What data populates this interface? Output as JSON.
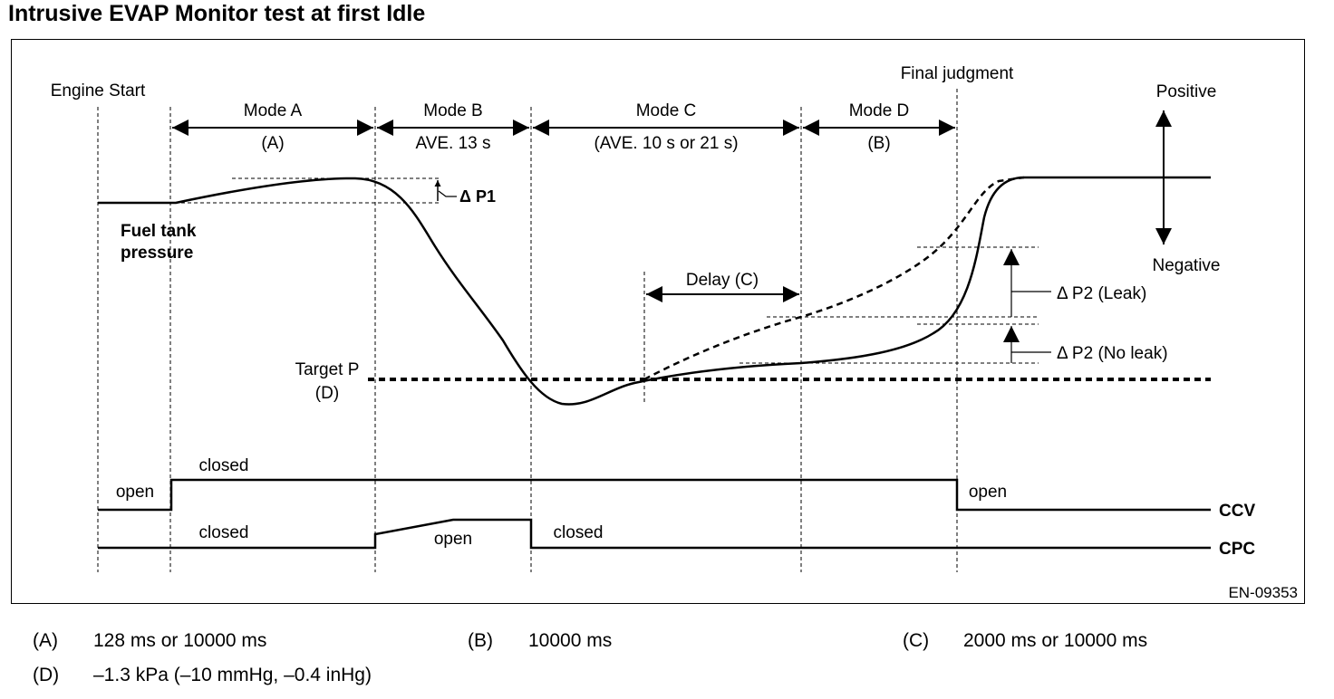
{
  "title": "Intrusive EVAP Monitor test at first Idle",
  "labels": {
    "engine_start": "Engine Start",
    "final_judgment": "Final judgment",
    "positive": "Positive",
    "negative": "Negative",
    "fuel_tank_line1": "Fuel tank",
    "fuel_tank_line2": "pressure",
    "target_p": "Target P",
    "target_p_ref": "(D)",
    "delta_p1": "Δ P1",
    "delta_p2_leak": "Δ P2 (Leak)",
    "delta_p2_no_leak": "Δ P2 (No leak)",
    "delay": "Delay (C)",
    "figure_code": "EN-09353"
  },
  "modes": [
    {
      "name": "Mode A",
      "duration": "(A)"
    },
    {
      "name": "Mode B",
      "duration": "AVE. 13 s"
    },
    {
      "name": "Mode C",
      "duration": "(AVE. 10 s or 21 s)"
    },
    {
      "name": "Mode D",
      "duration": "(B)"
    }
  ],
  "valves": {
    "ccv": {
      "name": "CCV",
      "state_1": "open",
      "state_2": "closed",
      "state_3": "open"
    },
    "cpc": {
      "name": "CPC",
      "state_1": "closed",
      "state_2": "open",
      "state_3": "closed"
    }
  },
  "footnotes": [
    {
      "key": "(A)",
      "value": "128 ms or 10000 ms"
    },
    {
      "key": "(B)",
      "value": "10000 ms"
    },
    {
      "key": "(C)",
      "value": "2000 ms or 10000 ms"
    },
    {
      "key": "(D)",
      "value": "–1.3 kPa (–10 mmHg, –0.4 inHg)"
    }
  ]
}
